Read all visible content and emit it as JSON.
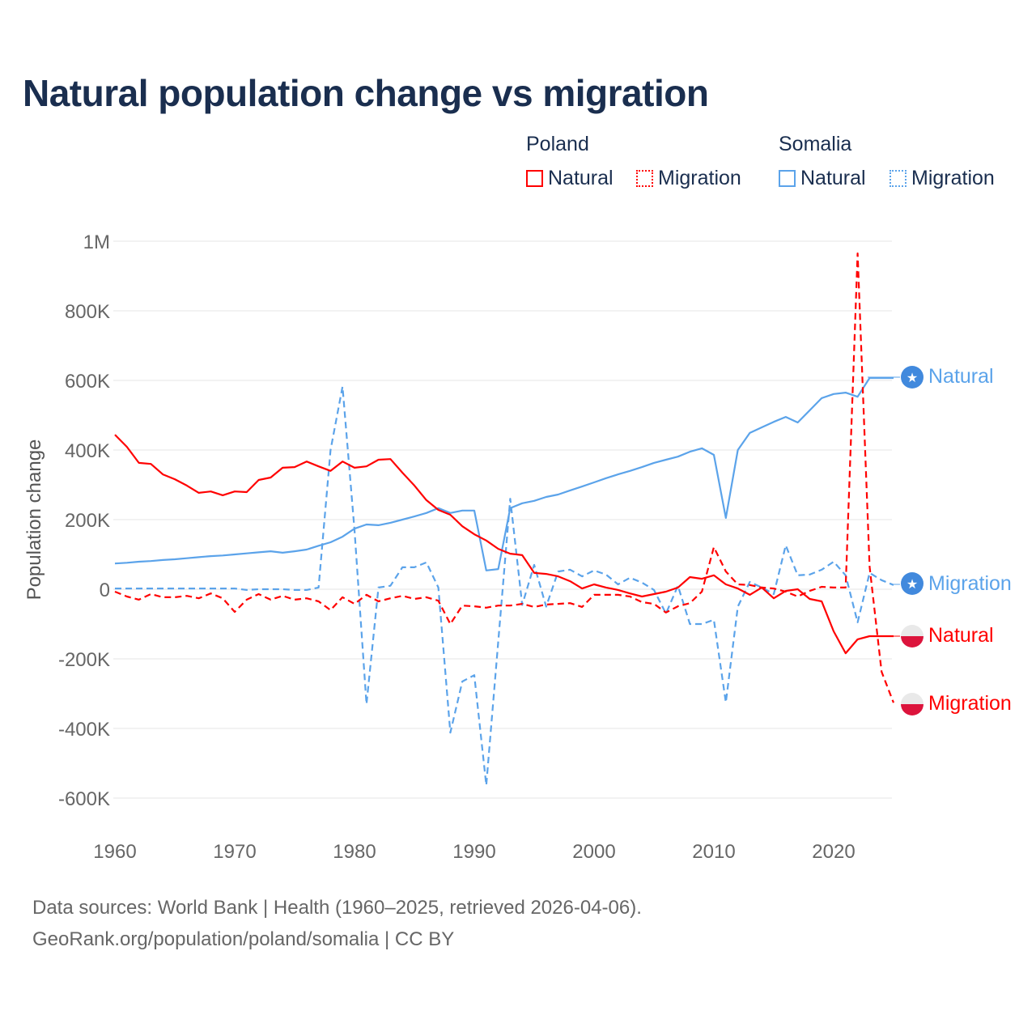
{
  "title": "Natural population change vs migration",
  "legend": {
    "groups": [
      {
        "name": "Poland",
        "items": [
          "Natural",
          "Migration"
        ]
      },
      {
        "name": "Somalia",
        "items": [
          "Natural",
          "Migration"
        ]
      }
    ]
  },
  "end_labels": {
    "somalia_natural": "Natural",
    "somalia_migration": "Migration",
    "poland_natural": "Natural",
    "poland_migration": "Migration"
  },
  "colors": {
    "poland": "#ff0000",
    "somalia": "#5ba3ea",
    "somalia_flag": "#4189dd",
    "poland_flag_red": "#dc143c"
  },
  "source": {
    "line1": "Data sources: World Bank | Health (1960–2025, retrieved 2026-04-06).",
    "line2": "GeoRank.org/population/poland/somalia | CC BY"
  },
  "chart_data": {
    "type": "line",
    "title": "Natural population change vs migration",
    "xlabel": "",
    "ylabel": "Population change",
    "xlim": [
      1960,
      2025
    ],
    "ylim": [
      -600000,
      1000000
    ],
    "x_ticks": [
      1960,
      1970,
      1980,
      1990,
      2000,
      2010,
      2020
    ],
    "x_tick_labels": [
      "1960",
      "1970",
      "1980",
      "1990",
      "2000",
      "2010",
      "2020"
    ],
    "y_ticks": [
      -600000,
      -400000,
      -200000,
      0,
      200000,
      400000,
      600000,
      800000,
      1000000
    ],
    "y_tick_labels": [
      "-600K",
      "-400K",
      "-200K",
      "0",
      "200K",
      "400K",
      "600K",
      "800K",
      "1M"
    ],
    "grid": true,
    "legend_position": "top-right",
    "unit": "thousands",
    "x_start": 1960,
    "series": [
      {
        "name": "Poland Natural",
        "country": "Poland",
        "kind": "Natural",
        "color": "#ff0000",
        "dash": false,
        "values": [
          444,
          409,
          363,
          360,
          330,
          316,
          298,
          277,
          281,
          270,
          281,
          279,
          314,
          321,
          349,
          351,
          367,
          353,
          340,
          367,
          349,
          353,
          372,
          374,
          335,
          298,
          256,
          228,
          214,
          181,
          158,
          140,
          116,
          102,
          98,
          47,
          44,
          37,
          23,
          2,
          14,
          5,
          -2,
          -12,
          -21,
          -14,
          -7,
          5,
          35,
          30,
          40,
          14,
          2,
          -16,
          5,
          -26,
          -5,
          0,
          -28,
          -35,
          -121,
          -184,
          -144,
          -135,
          -135,
          -135
        ]
      },
      {
        "name": "Poland Migration",
        "country": "Poland",
        "kind": "Migration",
        "color": "#ff0000",
        "dash": true,
        "values": [
          -7,
          -21,
          -30,
          -14,
          -23,
          -23,
          -19,
          -26,
          -12,
          -26,
          -65,
          -30,
          -14,
          -30,
          -19,
          -30,
          -26,
          -35,
          -60,
          -23,
          -42,
          -16,
          -35,
          -26,
          -19,
          -28,
          -23,
          -33,
          -100,
          -47,
          -49,
          -53,
          -47,
          -47,
          -42,
          -51,
          -44,
          -42,
          -40,
          -51,
          -16,
          -16,
          -16,
          -21,
          -37,
          -42,
          -67,
          -49,
          -40,
          -7,
          121,
          51,
          14,
          12,
          5,
          2,
          -7,
          -21,
          -5,
          7,
          5,
          5,
          965,
          65,
          -237,
          -326
        ]
      },
      {
        "name": "Somalia Natural",
        "country": "Somalia",
        "kind": "Natural",
        "color": "#5ba3ea",
        "dash": false,
        "values": [
          74,
          76,
          79,
          81,
          84,
          86,
          89,
          92,
          95,
          97,
          100,
          103,
          106,
          109,
          105,
          109,
          114,
          125,
          135,
          151,
          174,
          186,
          184,
          191,
          200,
          209,
          219,
          233,
          219,
          226,
          226,
          54,
          58,
          233,
          247,
          254,
          265,
          272,
          284,
          295,
          307,
          319,
          330,
          340,
          351,
          363,
          372,
          381,
          395,
          405,
          386,
          205,
          400,
          449,
          465,
          481,
          495,
          479,
          514,
          549,
          561,
          565,
          553,
          607,
          607,
          607
        ]
      },
      {
        "name": "Somalia Migration",
        "country": "Somalia",
        "kind": "Migration",
        "color": "#5ba3ea",
        "dash": true,
        "values": [
          2,
          2,
          2,
          2,
          2,
          2,
          2,
          2,
          2,
          2,
          2,
          -2,
          0,
          0,
          0,
          -2,
          -2,
          5,
          400,
          582,
          170,
          -330,
          5,
          10,
          63,
          63,
          77,
          5,
          -412,
          -265,
          -247,
          -563,
          -150,
          260,
          -45,
          70,
          -50,
          51,
          56,
          37,
          54,
          42,
          14,
          33,
          19,
          -2,
          -70,
          10,
          -100,
          -100,
          -88,
          -325,
          -50,
          21,
          5,
          -14,
          126,
          40,
          42,
          56,
          79,
          40,
          -95,
          47,
          26,
          12
        ]
      }
    ]
  }
}
